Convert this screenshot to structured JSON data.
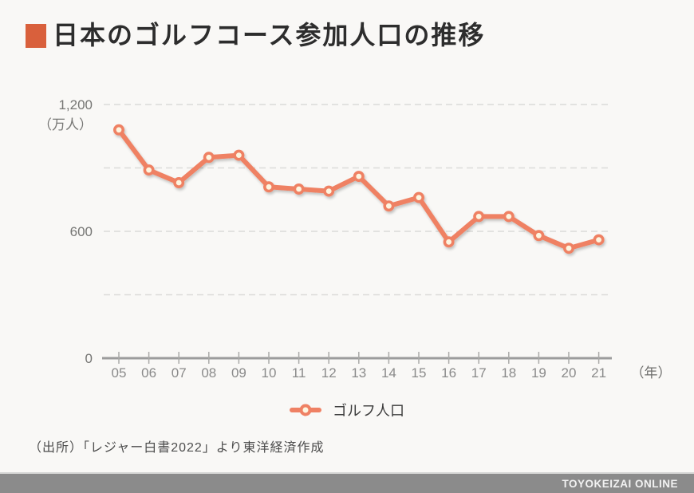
{
  "page": {
    "background": "#f9f8f6",
    "title": "日本のゴルフコース参加人口の推移",
    "title_accent_color": "#d9603c",
    "source_note": "（出所）「レジャー白書2022」より東洋経済作成",
    "footer_brand": "TOYOKEIZAI ONLINE",
    "footer_bar_color": "#8b8b8b"
  },
  "chart_data": {
    "type": "line",
    "title": "日本のゴルフコース参加人口の推移",
    "categories": [
      "05",
      "06",
      "07",
      "08",
      "09",
      "10",
      "11",
      "12",
      "13",
      "14",
      "15",
      "16",
      "17",
      "18",
      "19",
      "20",
      "21"
    ],
    "series": [
      {
        "name": "ゴルフ人口",
        "color": "#ef8164",
        "values": [
          1080,
          890,
          830,
          950,
          960,
          810,
          800,
          790,
          860,
          720,
          760,
          550,
          670,
          670,
          580,
          520,
          560
        ]
      }
    ],
    "ylim": [
      0,
      1200
    ],
    "grid_values": [
      300,
      600,
      900,
      1200
    ],
    "y_tick_labels": [
      {
        "value": 1200,
        "label": "1,200"
      },
      {
        "value": 600,
        "label": "600"
      },
      {
        "value": 0,
        "label": "0"
      }
    ],
    "y_unit_label": "（万人）",
    "x_unit_label": "（年）",
    "grid_style": "dashed",
    "grid_on": true,
    "legend_position": "bottom",
    "marker_fill": "#fdf5e0",
    "grid_color": "#dbdbd9",
    "axis_color": "#9c9c9c",
    "tick_label_color": "#8a8a8a"
  },
  "legend": {
    "label": "ゴルフ人口"
  }
}
